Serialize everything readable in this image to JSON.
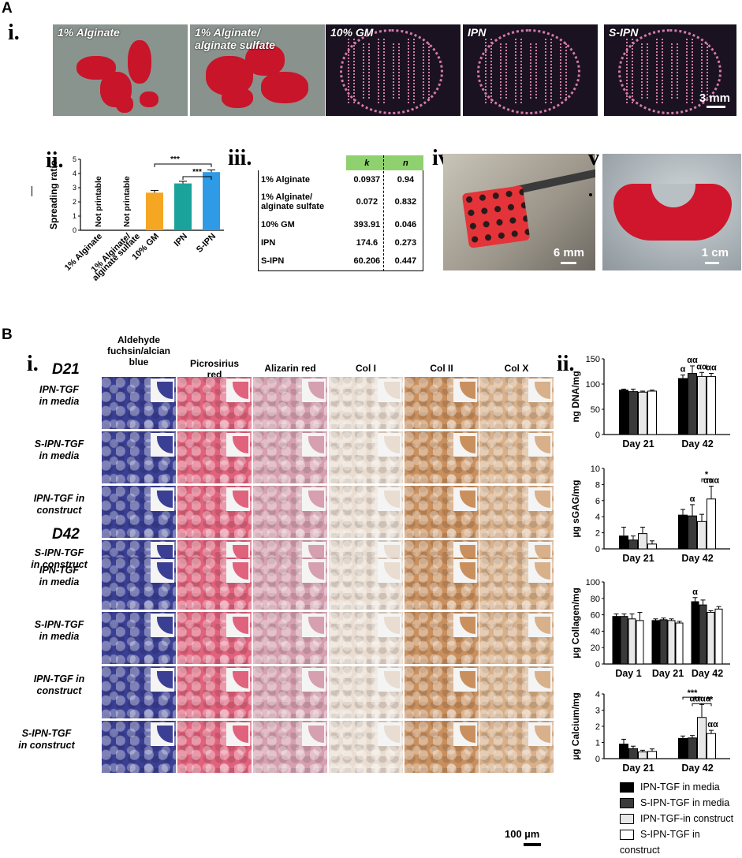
{
  "panelA": {
    "letter": "A",
    "i": {
      "label": "i.",
      "photos": [
        {
          "label": "1% Alginate",
          "bg": "#8a948f",
          "accent": "#c8152a"
        },
        {
          "label": "1% Alginate/\nalginate sulfate",
          "bg": "#8a928e",
          "accent": "#c8152a"
        },
        {
          "label": "10% GM",
          "bg": "#1a1220",
          "accent": "#d47aa8"
        },
        {
          "label": "IPN",
          "bg": "#1a1220",
          "accent": "#d47aa8"
        },
        {
          "label": "S-IPN",
          "bg": "#1a1220",
          "accent": "#d47aa8"
        }
      ],
      "scale_label": "3 mm"
    },
    "ii": {
      "label": "ii.",
      "ylabel": "Spreading ratio",
      "not_printable": "Not printable",
      "sig1": "***",
      "sig2": "***"
    },
    "iii": {
      "label": "iii.",
      "header": [
        "",
        "k",
        "n"
      ],
      "rows": [
        [
          "1% Alginate",
          "0.0937",
          "0.94"
        ],
        [
          "1% Alginate/\nalginate sulfate",
          "0.072",
          "0.832"
        ],
        [
          "10% GM",
          "393.91",
          "0.046"
        ],
        [
          "IPN",
          "174.6",
          "0.273"
        ],
        [
          "S-IPN",
          "60.206",
          "0.447"
        ]
      ]
    },
    "iv": {
      "label": "iv.",
      "scale_label": "6 mm"
    },
    "v": {
      "label": "v",
      "scale_label": "1 cm"
    }
  },
  "panelB": {
    "letter": "B",
    "i": {
      "label": "i.",
      "day1": "D21",
      "day2": "D42",
      "columns": [
        "Aldehyde\nfuchsin/alcian\nblue",
        "Picrosirius\nred",
        "Alizarin red",
        "Col I",
        "Col II",
        "Col X"
      ],
      "rows": [
        "IPN-TGF\nin media",
        "S-IPN-TGF\nin media",
        "IPN-TGF in\nconstruct",
        "S-IPN-TGF\nin construct"
      ],
      "scale_label": "100 µm"
    },
    "ii": {
      "label": "ii."
    }
  },
  "chart_data": [
    {
      "type": "bar",
      "categories": [
        "1% Alginate",
        "1% Alginate/\nalginate sulfate",
        "10% GM",
        "IPN",
        "S-IPN"
      ],
      "values": [
        null,
        null,
        2.65,
        3.3,
        4.1
      ],
      "errors": [
        null,
        null,
        0.15,
        0.15,
        0.15
      ],
      "colors": [
        "",
        "",
        "#f5a623",
        "#1aa39a",
        "#2f9be6"
      ],
      "ylabel": "Spreading ratio",
      "ylim": [
        0,
        5
      ]
    },
    {
      "type": "bar",
      "categories": [
        "Day 21",
        "Day 42"
      ],
      "series": [
        {
          "name": "IPN-TGF in media",
          "values": [
            88,
            111
          ],
          "errors": [
            2,
            7
          ]
        },
        {
          "name": "S-IPN-TGF in media",
          "values": [
            85,
            121
          ],
          "errors": [
            5,
            15
          ]
        },
        {
          "name": "IPN-TGF-in construct",
          "values": [
            84,
            115
          ],
          "errors": [
            2,
            8
          ]
        },
        {
          "name": "S-IPN-TGF in construct",
          "values": [
            86,
            115
          ],
          "errors": [
            2,
            6
          ]
        }
      ],
      "annotations": [
        "α",
        "αα",
        "αα",
        "αα"
      ],
      "ylabel": "ng DNA/mg",
      "ylim": [
        0,
        150
      ],
      "yticks": [
        0,
        50,
        100,
        150
      ]
    },
    {
      "type": "bar",
      "categories": [
        "Day 21",
        "Day 42"
      ],
      "series": [
        {
          "name": "IPN-TGF in media",
          "values": [
            1.6,
            4.2
          ],
          "errors": [
            1.1,
            0.7
          ]
        },
        {
          "name": "S-IPN-TGF in media",
          "values": [
            1.1,
            4.1
          ],
          "errors": [
            0.5,
            1.4
          ]
        },
        {
          "name": "IPN-TGF-in construct",
          "values": [
            1.9,
            3.4
          ],
          "errors": [
            0.8,
            0.9
          ]
        },
        {
          "name": "S-IPN-TGF in construct",
          "values": [
            0.6,
            6.2
          ],
          "errors": [
            0.4,
            1.6
          ]
        }
      ],
      "annotations": [
        "α",
        "*",
        "ααα"
      ],
      "ylabel": "µg sGAG/mg",
      "ylim": [
        0,
        10
      ],
      "yticks": [
        0,
        2,
        4,
        6,
        8,
        10
      ]
    },
    {
      "type": "bar",
      "categories": [
        "Day 1",
        "Day 21",
        "Day 42"
      ],
      "series": [
        {
          "name": "IPN-TGF in media",
          "values": [
            58,
            53,
            76
          ],
          "errors": [
            3,
            2,
            5
          ]
        },
        {
          "name": "S-IPN-TGF in media",
          "values": [
            58,
            54,
            72
          ],
          "errors": [
            3,
            2,
            6
          ]
        },
        {
          "name": "IPN-TGF-in construct",
          "values": [
            55,
            53,
            63
          ],
          "errors": [
            6,
            2,
            2
          ]
        },
        {
          "name": "S-IPN-TGF in construct",
          "values": [
            53,
            50,
            67
          ],
          "errors": [
            10,
            2,
            3
          ]
        }
      ],
      "annotations": [
        "α"
      ],
      "ylabel": "µg Collagen/mg",
      "ylim": [
        0,
        100
      ],
      "yticks": [
        0,
        20,
        40,
        60,
        80,
        100
      ]
    },
    {
      "type": "bar",
      "categories": [
        "Day 21",
        "Day 42"
      ],
      "series": [
        {
          "name": "IPN-TGF in media",
          "values": [
            0.9,
            1.25
          ],
          "errors": [
            0.3,
            0.15
          ]
        },
        {
          "name": "S-IPN-TGF in media",
          "values": [
            0.62,
            1.28
          ],
          "errors": [
            0.15,
            0.15
          ]
        },
        {
          "name": "IPN-TGF-in construct",
          "values": [
            0.42,
            2.55
          ],
          "errors": [
            0.1,
            0.8
          ]
        },
        {
          "name": "S-IPN-TGF in construct",
          "values": [
            0.45,
            1.55
          ],
          "errors": [
            0.15,
            0.2
          ]
        }
      ],
      "annotations": [
        "***",
        "**",
        "**",
        "αααα",
        "αα"
      ],
      "ylabel": "µg Calcium/mg",
      "ylim": [
        0,
        4
      ],
      "yticks": [
        0,
        1,
        2,
        3,
        4
      ]
    }
  ],
  "legend": {
    "items": [
      {
        "name": "IPN-TGF in media",
        "color": "#000000"
      },
      {
        "name": "S-IPN-TGF in media",
        "color": "#3a3a3a"
      },
      {
        "name": "IPN-TGF-in construct",
        "color": "#e8e8e8"
      },
      {
        "name": "S-IPN-TGF in construct",
        "color": "#ffffff"
      }
    ]
  },
  "stain_colors": [
    "#3a3f94",
    "#e0627c",
    "#d6a0b0",
    "#e9dcd0",
    "#c9905e",
    "#d8b08a"
  ]
}
